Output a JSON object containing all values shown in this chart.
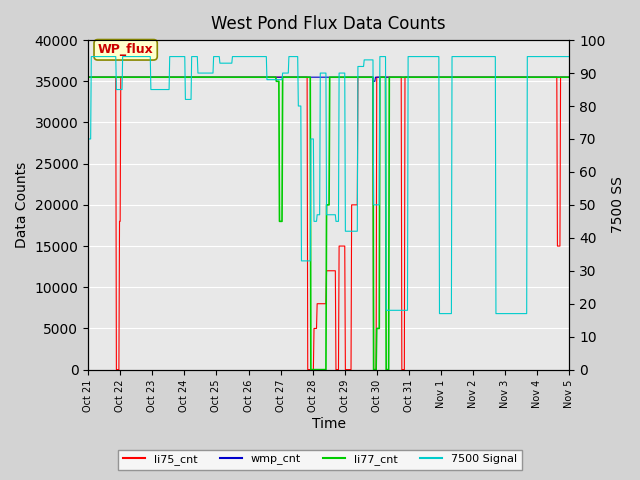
{
  "title": "West Pond Flux Data Counts",
  "xlabel": "Time",
  "ylabel": "Data Counts",
  "ylabel_right": "7500 SS",
  "background_color": "#d3d3d3",
  "plot_bg_color": "#e8e8e8",
  "ylim_left": [
    0,
    40000
  ],
  "ylim_right": [
    0,
    100
  ],
  "yticks_left": [
    0,
    5000,
    10000,
    15000,
    20000,
    25000,
    30000,
    35000,
    40000
  ],
  "yticks_right": [
    0,
    10,
    20,
    30,
    40,
    50,
    60,
    70,
    80,
    90,
    100
  ],
  "xtick_labels": [
    "Oct 21",
    "Oct 22",
    "Oct 23",
    "Oct 24",
    "Oct 25",
    "Oct 26",
    "Oct 27",
    "Oct 28",
    "Oct 29",
    "Oct 30",
    "Oct 31",
    "Nov 1",
    "Nov 2",
    "Nov 3",
    "Nov 4",
    "Nov 5"
  ],
  "colors": {
    "li75_cnt": "#ff0000",
    "wmp_cnt": "#0000cc",
    "li77_cnt": "#00cc00",
    "signal_7500": "#00cccc"
  },
  "annotation_text": "WP_flux",
  "annotation_color": "#cc0000",
  "annotation_bg": "#ffffcc",
  "annotation_edge": "#888800"
}
